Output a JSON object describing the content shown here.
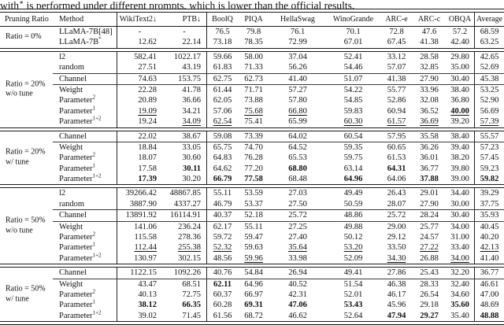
{
  "caption": {
    "pre": "with",
    "sup": "∗",
    "post": " is performed under different prompts, which is lower than the official results."
  },
  "table": {
    "columns": [
      "Pruning Ratio",
      "Method",
      "WikiText2↓",
      "PTB↓",
      "BoolQ",
      "PIQA",
      "HellaSwag",
      "WinoGrande",
      "ARC-e",
      "ARC-c",
      "OBQA",
      "Average"
    ],
    "groups": [
      {
        "label1": "Ratio = 0%",
        "label2": "",
        "subgroups": [
          {
            "rows": [
              {
                "m": "LLaMA-7B[48]",
                "s": "",
                "cells": [
                  "-|c",
                  "-|c",
                  "76.5",
                  "79.8",
                  "76.1",
                  "70.1",
                  "72.8",
                  "47.6",
                  "57.2",
                  "68.59"
                ]
              },
              {
                "m": "LLaMA-7B",
                "s": "*",
                "cells": [
                  "12.62",
                  "22.14",
                  "73.18",
                  "78.35",
                  "72.99",
                  "67.01",
                  "67.45",
                  "41.38",
                  "42.40",
                  "63.25"
                ]
              }
            ]
          }
        ]
      },
      {
        "label1": "Ratio = 20%",
        "label2": "w/o tune",
        "subgroups": [
          {
            "rows": [
              {
                "m": "l2",
                "s": "",
                "cells": [
                  "582.41",
                  "1022.17",
                  "59.66",
                  "58.00",
                  "37.04",
                  "52.41",
                  "33.12",
                  "28.58",
                  "29.80",
                  "42.65"
                ]
              },
              {
                "m": "random",
                "s": "",
                "cells": [
                  "27.51",
                  "43.19",
                  "61.83",
                  "71.33",
                  "56.26",
                  "54.46",
                  "57.07",
                  "32.85",
                  "35.00",
                  "52.69"
                ]
              }
            ]
          },
          {
            "rows": [
              {
                "m": "Channel",
                "s": "",
                "cells": [
                  "74.63",
                  "153.75",
                  "62.75",
                  "62.73",
                  "41.40",
                  "51.07",
                  "41.38",
                  "27.90",
                  "30.40",
                  "45.38"
                ]
              }
            ]
          },
          {
            "rows": [
              {
                "m": "Weight",
                "s": "",
                "cells": [
                  "22.28",
                  "41.78",
                  "61.44",
                  "71.71",
                  "57.27",
                  "54.22",
                  "55.77",
                  "33.96",
                  "38.40",
                  "53.25"
                ]
              },
              {
                "m": "Parameter",
                "s": "2",
                "cells": [
                  "20.89",
                  "36.66",
                  "62.05",
                  "73.88",
                  "57.80",
                  "54.85",
                  "52.86",
                  "32.08",
                  "36.80",
                  "52.90"
                ]
              },
              {
                "m": "Parameter",
                "s": "1",
                "cells": [
                  "19.09|u",
                  "34.21",
                  "57.06",
                  "75.68|u",
                  "66.80|u",
                  "59.83",
                  "60.94",
                  "36.52",
                  "40.00|bu",
                  "56.69"
                ]
              },
              {
                "m": "Parameter",
                "s": "1+2",
                "cells": [
                  "19.24",
                  "34.09|u",
                  "62.54|u",
                  "75.41",
                  "65.99",
                  "60.30|u",
                  "61.57|u",
                  "36.69|u",
                  "39.20",
                  "57.39|u"
                ]
              }
            ]
          }
        ]
      },
      {
        "label1": "Ratio = 20%",
        "label2": "w/ tune",
        "subgroups": [
          {
            "rows": [
              {
                "m": "Channel",
                "s": "",
                "cells": [
                  "22.02",
                  "38.67",
                  "59.08",
                  "73.39",
                  "64.02",
                  "60.54",
                  "57.95",
                  "35.58",
                  "38.40",
                  "55.57"
                ]
              }
            ]
          },
          {
            "rows": [
              {
                "m": "Weight",
                "s": "",
                "cells": [
                  "18.84",
                  "33.05",
                  "65.75",
                  "74.70",
                  "64.52",
                  "59.35",
                  "60.65",
                  "36.26",
                  "39.40",
                  "57.23"
                ]
              },
              {
                "m": "Parameter",
                "s": "2",
                "cells": [
                  "18.07",
                  "30.60",
                  "64.83",
                  "76.28",
                  "65.53",
                  "59.75",
                  "61.53",
                  "36.01",
                  "38.20",
                  "57.45"
                ]
              },
              {
                "m": "Parameter",
                "s": "1",
                "cells": [
                  "17.58",
                  "30.11|b",
                  "64.62",
                  "77.20",
                  "68.80|b",
                  "63.14",
                  "64.31|b",
                  "36.77",
                  "39.80",
                  "59.23"
                ]
              },
              {
                "m": "Parameter",
                "s": "1+2",
                "cells": [
                  "17.39|b",
                  "30.20",
                  "66.79|b",
                  "77.58|b",
                  "68.48",
                  "64.96|b",
                  "64.06",
                  "37.88|b",
                  "39.00",
                  "59.82|b"
                ]
              }
            ]
          }
        ]
      },
      {
        "label1": "Ratio = 50%",
        "label2": "w/o tune",
        "subgroups": [
          {
            "rows": [
              {
                "m": "l2",
                "s": "",
                "cells": [
                  "39266.42",
                  "48867.85",
                  "55.11",
                  "53.59",
                  "27.03",
                  "49.49",
                  "26.43",
                  "29.01",
                  "34.40",
                  "39.29"
                ]
              },
              {
                "m": "random",
                "s": "",
                "cells": [
                  "3887.90",
                  "4337.27",
                  "46.79",
                  "53.37",
                  "27.50",
                  "50.59",
                  "28.07",
                  "27.90",
                  "30.00",
                  "37.75"
                ]
              }
            ]
          },
          {
            "rows": [
              {
                "m": "Channel",
                "s": "",
                "cells": [
                  "13891.92",
                  "16114.91",
                  "40.37",
                  "52.18",
                  "25.72",
                  "48.86",
                  "25.72",
                  "28.24",
                  "30.40",
                  "35.93"
                ]
              }
            ]
          },
          {
            "rows": [
              {
                "m": "Weight",
                "s": "",
                "cells": [
                  "141.06",
                  "236.24",
                  "62.17",
                  "55.11",
                  "27.25",
                  "49.88",
                  "29.00",
                  "25.77",
                  "34.00",
                  "40.45"
                ]
              },
              {
                "m": "Parameter",
                "s": "2",
                "cells": [
                  "115.58",
                  "278.36",
                  "59.72",
                  "59.47",
                  "27.40",
                  "50.12",
                  "29.12",
                  "24.57",
                  "31.00",
                  "40.20"
                ]
              },
              {
                "m": "Parameter",
                "s": "1",
                "cells": [
                  "112.44|u",
                  "255.38|u",
                  "52.32|u",
                  "59.63",
                  "35.64|u",
                  "53.20|u",
                  "33.50",
                  "27.22|u",
                  "33.40",
                  "42.13|u"
                ]
              },
              {
                "m": "Parameter",
                "s": "1+2",
                "cells": [
                  "130.97",
                  "302.15",
                  "48.56",
                  "59.96|u",
                  "33.98",
                  "52.09",
                  "34.30|u",
                  "26.88",
                  "34.00|u",
                  "41.40"
                ]
              }
            ]
          }
        ]
      },
      {
        "label1": "Ratio = 50%",
        "label2": "w/ tune",
        "subgroups": [
          {
            "rows": [
              {
                "m": "Channel",
                "s": "",
                "cells": [
                  "1122.15",
                  "1092.26",
                  "40.76",
                  "54.84",
                  "26.94",
                  "49.41",
                  "27.86",
                  "25.43",
                  "32.20",
                  "36.77"
                ]
              }
            ]
          },
          {
            "rows": [
              {
                "m": "Weight",
                "s": "",
                "cells": [
                  "43.47",
                  "68.51",
                  "62.11|b",
                  "64.96",
                  "40.52",
                  "51.54",
                  "46.38",
                  "28.33",
                  "32.40",
                  "46.61"
                ]
              },
              {
                "m": "Parameter",
                "s": "2",
                "cells": [
                  "40.13",
                  "72.75",
                  "60.37",
                  "66.97",
                  "42.31",
                  "52.01",
                  "46.17",
                  "26.54",
                  "34.60",
                  "47.00"
                ]
              },
              {
                "m": "Parameter",
                "s": "1",
                "cells": [
                  "38.12|b",
                  "66.35|b",
                  "60.28",
                  "69.31|b",
                  "47.06|b",
                  "53.43|b",
                  "45.96",
                  "29.18",
                  "35.60|b",
                  "48.69"
                ]
              },
              {
                "m": "Parameter",
                "s": "1+2",
                "cells": [
                  "39.02",
                  "71.45",
                  "61.56",
                  "68.72",
                  "46.62",
                  "52.64",
                  "47.94|b",
                  "29.27|b",
                  "35.40",
                  "48.88|b"
                ]
              }
            ]
          }
        ]
      }
    ]
  }
}
